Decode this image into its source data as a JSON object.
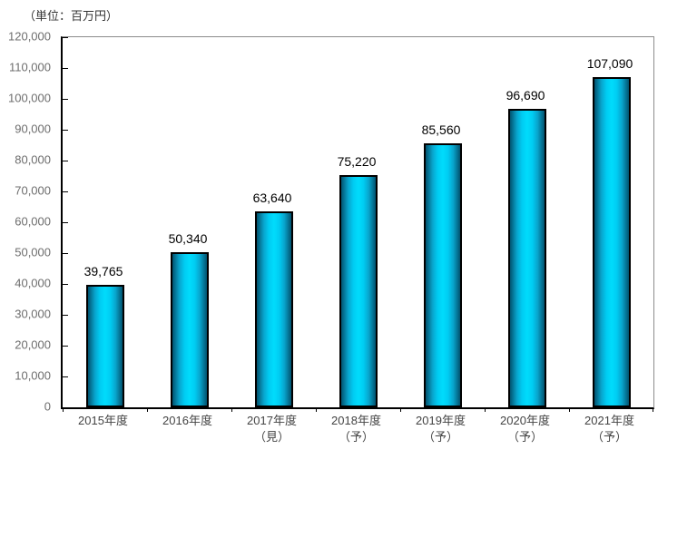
{
  "unit_label": "（単位：百万円）",
  "chart_data": {
    "type": "bar",
    "title": "",
    "xlabel": "",
    "ylabel": "単位：百万円",
    "categories": [
      "2015年度",
      "2016年度",
      "2017年度\n（見）",
      "2018年度\n（予）",
      "2019年度\n（予）",
      "2020年度\n（予）",
      "2021年度\n（予）"
    ],
    "values": [
      39765,
      50340,
      63640,
      75220,
      85560,
      96690,
      107090
    ],
    "value_labels": [
      "39,765",
      "50,340",
      "63,640",
      "75,220",
      "85,560",
      "96,690",
      "107,090"
    ],
    "ylim": [
      0,
      120000
    ],
    "y_step": 10000,
    "y_tick_labels": [
      "0",
      "10,000",
      "20,000",
      "30,000",
      "40,000",
      "50,000",
      "60,000",
      "70,000",
      "80,000",
      "90,000",
      "100,000",
      "110,000",
      "120,000"
    ],
    "grid": false,
    "legend": "none",
    "colors": {
      "bar_center": "#00dcfc",
      "bar_edge": "#02536f",
      "bar_border": "#000000",
      "axis_line": "#000000",
      "plot_border": "#8c8c8c",
      "tick_label": "#6e6e6e",
      "category_label": "#444444",
      "value_label": "#000000",
      "background": "#ffffff"
    }
  }
}
